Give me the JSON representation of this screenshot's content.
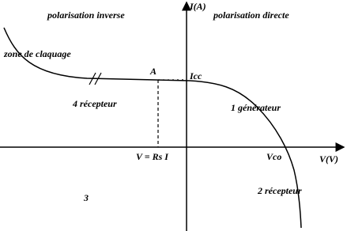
{
  "labels": {
    "region_inverse": "polarisation inverse",
    "region_directe": "polarisation directe",
    "y_axis": "I(A)",
    "x_axis": "V(V)",
    "breakdown": "zone de claquage",
    "point_a": "A",
    "icc": "Icc",
    "quadrant_4": "4  récepteur",
    "quadrant_1": "1  générateur",
    "v_rs": "V = Rs I",
    "vco": "Vco",
    "quadrant_3": "3",
    "quadrant_2": "2  récepteur"
  }
}
